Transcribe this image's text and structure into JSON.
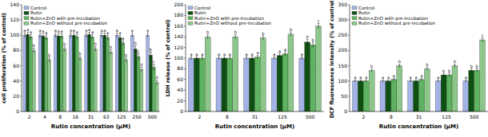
{
  "chart_data": [
    {
      "type": "bar",
      "y_label": "cell proliferation (% of control)",
      "x_label": "Rutin concentration (μM)",
      "categories": [
        "2",
        "4",
        "8",
        "16",
        "31",
        "63",
        "125",
        "250",
        "500"
      ],
      "series": [
        {
          "name": "Control",
          "color": "#a3b3e6",
          "values": [
            100,
            100,
            100,
            100,
            100,
            100,
            100,
            100,
            100
          ],
          "errors": [
            3,
            3,
            3,
            3,
            3,
            3,
            3,
            3,
            3
          ],
          "letters": [
            "a",
            "a",
            "a",
            "a",
            "a",
            "a",
            "a",
            "a",
            "a"
          ]
        },
        {
          "name": "Rutin",
          "color": "#0e4f12",
          "values": [
            101,
            99,
            99,
            100,
            101,
            100,
            97,
            82,
            74
          ],
          "errors": [
            3,
            3,
            3,
            3,
            3,
            3,
            3,
            4,
            4
          ],
          "letters": [
            "a",
            "a",
            "a",
            "a",
            "a",
            "a",
            "a",
            "b",
            "b"
          ]
        },
        {
          "name": "Rutin+ZnO with pre-incubation",
          "color": "#5db35f",
          "values": [
            98,
            97,
            99,
            98,
            98,
            97,
            90,
            72,
            58
          ],
          "errors": [
            3,
            3,
            3,
            3,
            3,
            3,
            3,
            4,
            4
          ],
          "letters": [
            "a",
            "a",
            "a",
            "a",
            "a",
            "a",
            "a",
            "c",
            "c"
          ]
        },
        {
          "name": "Rutin+ZnO without pre-incubation",
          "color": "#9fd49b",
          "line_style": "hatched",
          "values": [
            80,
            68,
            82,
            70,
            82,
            78,
            68,
            55,
            38
          ],
          "errors": [
            3,
            3,
            3,
            3,
            3,
            3,
            3,
            3,
            3
          ],
          "letters": [
            "b",
            "b",
            "b",
            "b",
            "b",
            "b",
            "b",
            "d",
            "d"
          ]
        }
      ],
      "ylim": [
        0,
        140
      ],
      "yticks": [
        0,
        20,
        40,
        60,
        80,
        100,
        120,
        140
      ],
      "grid": false,
      "legend": "upper-left"
    },
    {
      "type": "bar",
      "y_label": "LDH release (% of control)",
      "x_label": "Rutin concentration (μM)",
      "categories": [
        "2",
        "8",
        "31",
        "125",
        "500"
      ],
      "series": [
        {
          "name": "Control",
          "color": "#a3b3e6",
          "values": [
            100,
            100,
            100,
            100,
            100
          ],
          "errors": [
            3,
            3,
            3,
            3,
            3
          ],
          "letters": [
            "a",
            "a",
            "a",
            "a",
            "a"
          ]
        },
        {
          "name": "Rutin",
          "color": "#0e4f12",
          "values": [
            100,
            100,
            100,
            105,
            130
          ],
          "errors": [
            3,
            3,
            3,
            4,
            5
          ],
          "letters": [
            "a",
            "a",
            "a",
            "a",
            "b"
          ]
        },
        {
          "name": "Rutin+ZnO with pre-incubation",
          "color": "#5db35f",
          "values": [
            100,
            100,
            102,
            108,
            125
          ],
          "errors": [
            3,
            3,
            3,
            4,
            5
          ],
          "letters": [
            "a",
            "a",
            "a",
            "a",
            "b"
          ]
        },
        {
          "name": "Rutin+ZnO without pre-incubation",
          "color": "#9fd49b",
          "line_style": "hatched",
          "values": [
            140,
            140,
            138,
            145,
            160
          ],
          "errors": [
            4,
            4,
            4,
            4,
            5
          ],
          "letters": [
            "b",
            "b",
            "b",
            "b",
            "c"
          ]
        }
      ],
      "ylim": [
        0,
        200
      ],
      "yticks": [
        0,
        20,
        40,
        60,
        80,
        100,
        120,
        140,
        160,
        180,
        200
      ],
      "grid": false,
      "legend": "upper-left"
    },
    {
      "type": "bar",
      "y_label": "DCF fluorescence intensity (% of control)",
      "x_label": "Rutin concentration (μM)",
      "categories": [
        "2",
        "8",
        "31",
        "125",
        "500"
      ],
      "series": [
        {
          "name": "Control",
          "color": "#a3b3e6",
          "values": [
            100,
            100,
            100,
            100,
            100
          ],
          "errors": [
            4,
            4,
            4,
            4,
            4
          ],
          "letters": [
            "a",
            "a",
            "a",
            "a",
            "a"
          ]
        },
        {
          "name": "Rutin",
          "color": "#0e4f12",
          "values": [
            100,
            100,
            100,
            120,
            135
          ],
          "errors": [
            4,
            4,
            4,
            5,
            6
          ],
          "letters": [
            "a",
            "a",
            "a",
            "b",
            "b"
          ]
        },
        {
          "name": "Rutin+ZnO with pre-incubation",
          "color": "#5db35f",
          "values": [
            100,
            105,
            105,
            120,
            135
          ],
          "errors": [
            4,
            4,
            4,
            5,
            6
          ],
          "letters": [
            "a",
            "a",
            "a",
            "b",
            "b"
          ]
        },
        {
          "name": "Rutin+ZnO without pre-incubation",
          "color": "#9fd49b",
          "line_style": "hatched",
          "values": [
            135,
            150,
            140,
            150,
            235
          ],
          "errors": [
            5,
            5,
            5,
            5,
            7
          ],
          "letters": [
            "b",
            "b",
            "b",
            "b",
            "c"
          ]
        }
      ],
      "ylim": [
        0,
        350
      ],
      "yticks": [
        0,
        50,
        100,
        150,
        200,
        250,
        300,
        350
      ],
      "grid": false,
      "legend": "upper-left"
    }
  ]
}
